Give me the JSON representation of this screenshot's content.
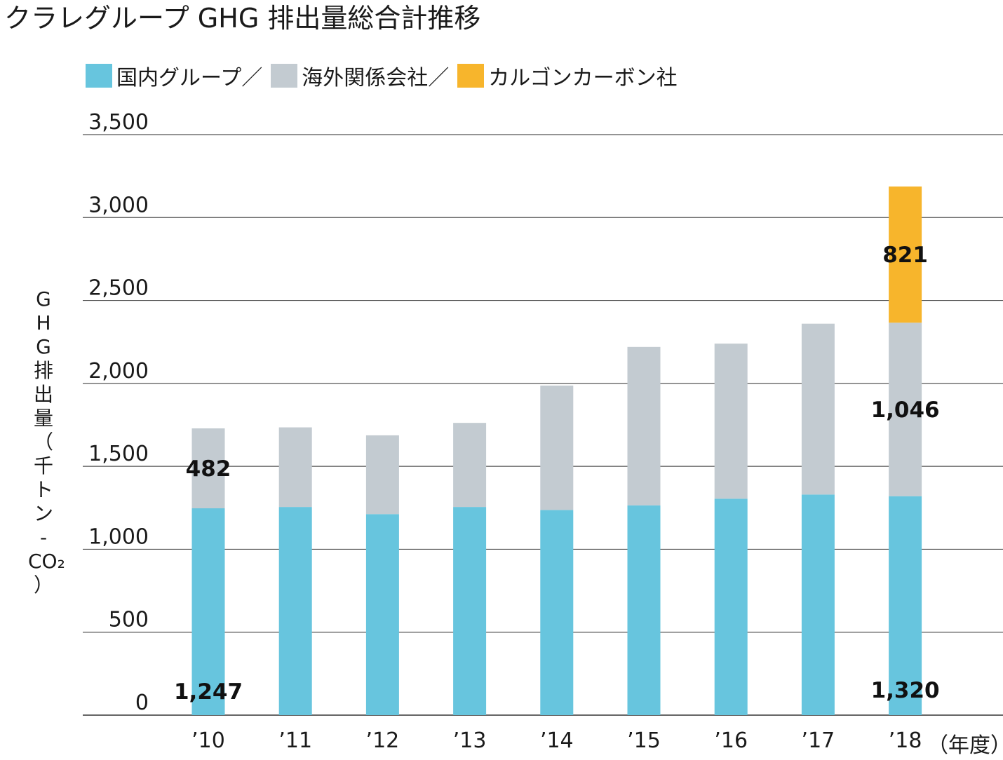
{
  "title": "クラレグループ GHG 排出量総合計推移",
  "legend": [
    {
      "label": "国内グループ",
      "sep": "／",
      "color": "#67c5de"
    },
    {
      "label": "海外関係会社",
      "sep": "／",
      "color": "#c3cbd1"
    },
    {
      "label": "カルゴンカーボン社",
      "sep": "",
      "color": "#f7b52c"
    }
  ],
  "y_axis_label_chars": [
    "G",
    "H",
    "G",
    "排",
    "出",
    "量",
    "（",
    "千",
    "ト",
    "ン",
    "-",
    "CO₂",
    "）"
  ],
  "unit_label": "（年度）",
  "chart_data": {
    "type": "bar",
    "stacked": true,
    "title": "クラレグループ GHG 排出量総合計推移",
    "ylabel": "GHG排出量（千トン-CO₂）",
    "xlabel": "（年度）",
    "categories": [
      "’10",
      "’11",
      "’12",
      "’13",
      "’14",
      "’15",
      "’16",
      "’17",
      "’18"
    ],
    "ylim": [
      0,
      3500
    ],
    "yticks": [
      0,
      500,
      1000,
      1500,
      2000,
      2500,
      3000,
      3500
    ],
    "ytick_labels": [
      "0",
      "500",
      "1,000",
      "1,500",
      "2,000",
      "2,500",
      "3,000",
      "3,500"
    ],
    "grid": true,
    "legend_position": "top-left",
    "series": [
      {
        "name": "国内グループ",
        "color": "#67c5de",
        "values": [
          1247,
          1255,
          1212,
          1255,
          1237,
          1265,
          1305,
          1330,
          1320
        ]
      },
      {
        "name": "海外関係会社",
        "color": "#c3cbd1",
        "values": [
          482,
          480,
          475,
          507,
          750,
          955,
          935,
          1030,
          1046
        ]
      },
      {
        "name": "カルゴンカーボン社",
        "color": "#f7b52c",
        "values": [
          0,
          0,
          0,
          0,
          0,
          0,
          0,
          0,
          821
        ]
      }
    ],
    "data_labels": [
      {
        "category": 0,
        "series": 0,
        "text": "1,247"
      },
      {
        "category": 0,
        "series": 1,
        "text": "482"
      },
      {
        "category": 8,
        "series": 0,
        "text": "1,320"
      },
      {
        "category": 8,
        "series": 1,
        "text": "1,046"
      },
      {
        "category": 8,
        "series": 2,
        "text": "821"
      }
    ]
  }
}
